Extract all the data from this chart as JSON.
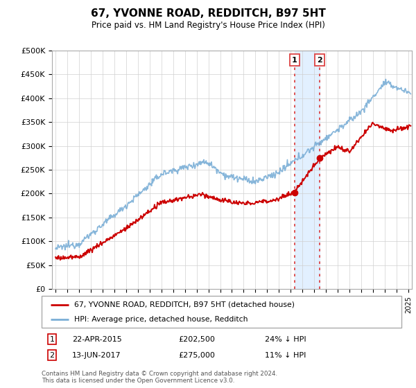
{
  "title": "67, YVONNE ROAD, REDDITCH, B97 5HT",
  "subtitle": "Price paid vs. HM Land Registry's House Price Index (HPI)",
  "ylabel_ticks": [
    "£0",
    "£50K",
    "£100K",
    "£150K",
    "£200K",
    "£250K",
    "£300K",
    "£350K",
    "£400K",
    "£450K",
    "£500K"
  ],
  "ytick_vals": [
    0,
    50000,
    100000,
    150000,
    200000,
    250000,
    300000,
    350000,
    400000,
    450000,
    500000
  ],
  "ylim": [
    0,
    500000
  ],
  "sale1_x": 2015.31,
  "sale1_price": 202500,
  "sale2_x": 2017.45,
  "sale2_price": 275000,
  "legend_property": "67, YVONNE ROAD, REDDITCH, B97 5HT (detached house)",
  "legend_hpi": "HPI: Average price, detached house, Redditch",
  "footer": "Contains HM Land Registry data © Crown copyright and database right 2024.\nThis data is licensed under the Open Government Licence v3.0.",
  "property_line_color": "#cc0000",
  "hpi_line_color": "#7aaed6",
  "highlight_fill": "#ddeeff",
  "vline_color": "#dd4444",
  "background_color": "#ffffff",
  "xlim_start": 1994.7,
  "xlim_end": 2025.3
}
